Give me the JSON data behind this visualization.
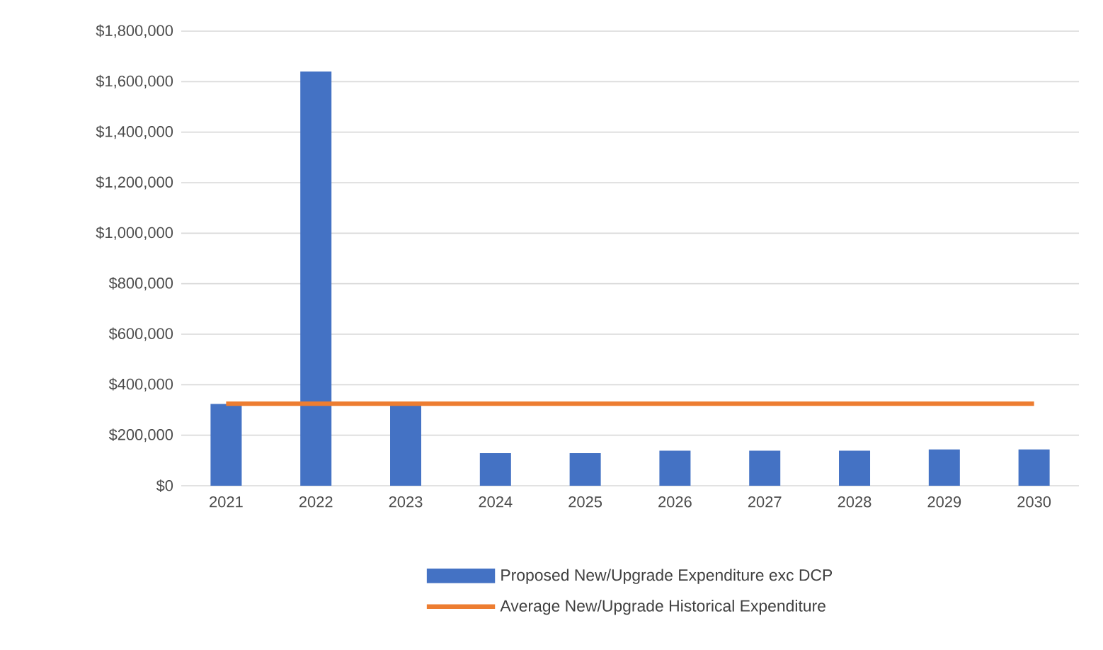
{
  "chart_data": {
    "type": "bar",
    "categories": [
      "2021",
      "2022",
      "2023",
      "2024",
      "2025",
      "2026",
      "2027",
      "2028",
      "2029",
      "2030"
    ],
    "series": [
      {
        "name": "Proposed New/Upgrade Expenditure exc DCP",
        "color": "#4472c4",
        "values": [
          324000,
          1640000,
          317000,
          129000,
          129000,
          139000,
          139000,
          139000,
          144000,
          144000
        ]
      },
      {
        "name": "Average New/Upgrade Historical Expenditure",
        "type": "line",
        "color": "#ed7d31",
        "values": [
          325000,
          325000,
          325000,
          325000,
          325000,
          325000,
          325000,
          325000,
          325000,
          325000
        ]
      }
    ],
    "ylim": [
      0,
      1800000
    ],
    "yticks": [
      {
        "value": 0,
        "label": "$0"
      },
      {
        "value": 200000,
        "label": "$200,000"
      },
      {
        "value": 400000,
        "label": "$400,000"
      },
      {
        "value": 600000,
        "label": "$600,000"
      },
      {
        "value": 800000,
        "label": "$800,000"
      },
      {
        "value": 1000000,
        "label": "$1,000,000"
      },
      {
        "value": 1200000,
        "label": "$1,200,000"
      },
      {
        "value": 1400000,
        "label": "$1,400,000"
      },
      {
        "value": 1600000,
        "label": "$1,600,000"
      },
      {
        "value": 1800000,
        "label": "$1,800,000"
      }
    ],
    "grid": "y",
    "legend": "bottom"
  }
}
